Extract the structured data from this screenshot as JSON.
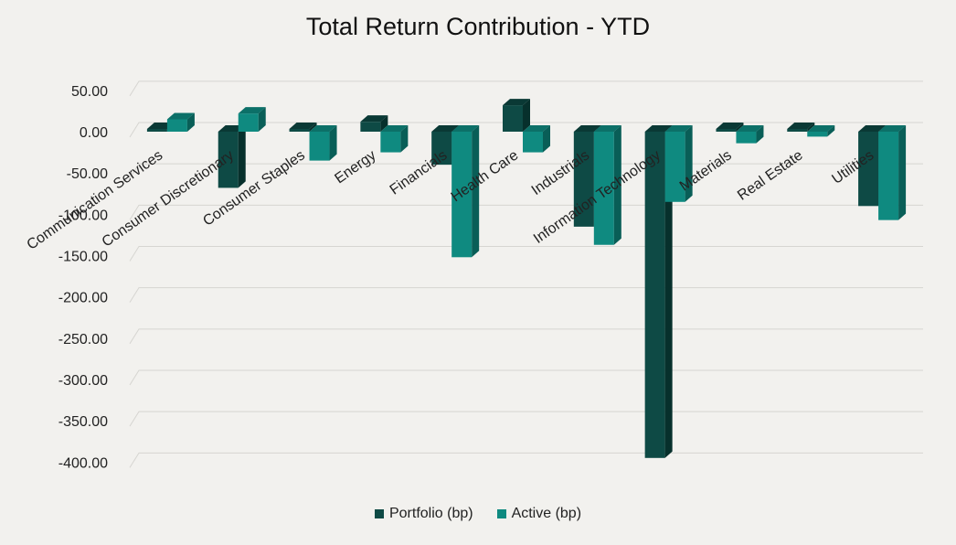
{
  "chart_data": {
    "type": "bar",
    "style": "3d-clustered-column",
    "title": "Total Return Contribution - YTD",
    "xlabel": "",
    "ylabel": "",
    "ylim": [
      -400,
      50
    ],
    "yticks": [
      50,
      0,
      -50,
      -100,
      -150,
      -200,
      -250,
      -300,
      -350,
      -400
    ],
    "ytick_labels": [
      "50.00",
      "0.00",
      "-50.00",
      "-100.00",
      "-150.00",
      "-200.00",
      "-250.00",
      "-300.00",
      "-350.00",
      "-400.00"
    ],
    "grid": true,
    "legend_position": "bottom",
    "categories": [
      "Communication Services",
      "Consumer Discretionary",
      "Consumer Staples",
      "Energy",
      "Financials",
      "Health Care",
      "Industrials",
      "Information Technology",
      "Materials",
      "Real Estate",
      "Utilities"
    ],
    "series": [
      {
        "name": "Portfolio (bp)",
        "color": "#0e4a45",
        "top_color": "#0a3935",
        "side_color": "#07302c",
        "values": [
          -2,
          -68,
          -2,
          12,
          -40,
          32,
          -115,
          -395,
          -2,
          -2,
          -90
        ]
      },
      {
        "name": "Active (bp)",
        "color": "#0f8a80",
        "top_color": "#0c7068",
        "side_color": "#095e57",
        "values": [
          15,
          22,
          -35,
          -25,
          -152,
          -25,
          -137,
          -85,
          -14,
          -6,
          -107
        ]
      }
    ]
  }
}
